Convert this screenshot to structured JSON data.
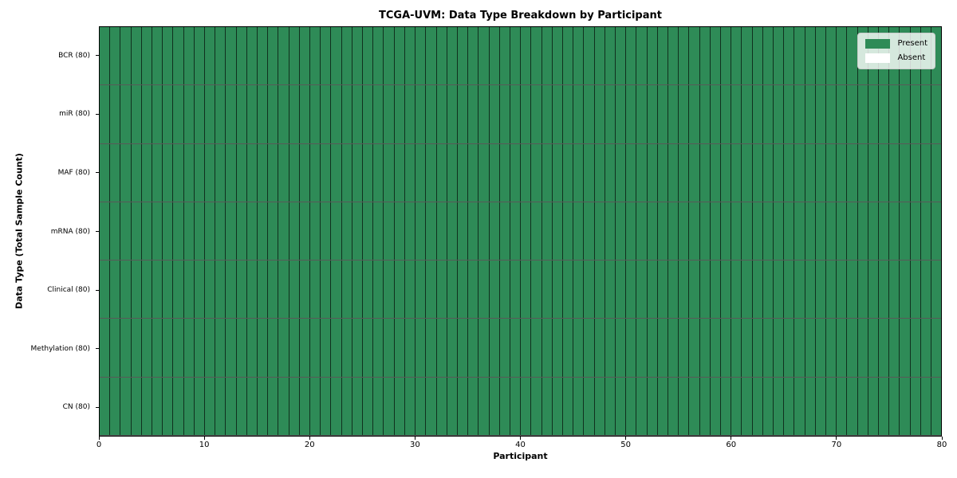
{
  "chart_data": {
    "type": "heatmap",
    "title": "TCGA-UVM: Data Type Breakdown by Participant",
    "xlabel": "Participant",
    "ylabel": "Data Type (Total Sample Count)",
    "xlim": [
      0,
      80
    ],
    "x_ticks": [
      0,
      10,
      20,
      30,
      40,
      50,
      60,
      70,
      80
    ],
    "n_participants": 80,
    "rows": [
      {
        "label": "BCR (80)",
        "total_samples": 80,
        "present_participants": 80
      },
      {
        "label": "miR (80)",
        "total_samples": 80,
        "present_participants": 80
      },
      {
        "label": "MAF (80)",
        "total_samples": 80,
        "present_participants": 80
      },
      {
        "label": "mRNA (80)",
        "total_samples": 80,
        "present_participants": 80
      },
      {
        "label": "Clinical (80)",
        "total_samples": 80,
        "present_participants": 80
      },
      {
        "label": "Methylation (80)",
        "total_samples": 80,
        "present_participants": 80
      },
      {
        "label": "CN (80)",
        "total_samples": 80,
        "present_participants": 80
      }
    ],
    "legend": {
      "position": "upper right",
      "items": [
        {
          "label": "Present",
          "color": "#2e8b57"
        },
        {
          "label": "Absent",
          "color": "#ffffff"
        }
      ]
    },
    "colors": {
      "present": "#2e8b57",
      "absent": "#ffffff",
      "cell_border": "rgba(0,0,0,0.65)",
      "axis": "#000000",
      "background": "#ffffff"
    },
    "grid": true
  }
}
